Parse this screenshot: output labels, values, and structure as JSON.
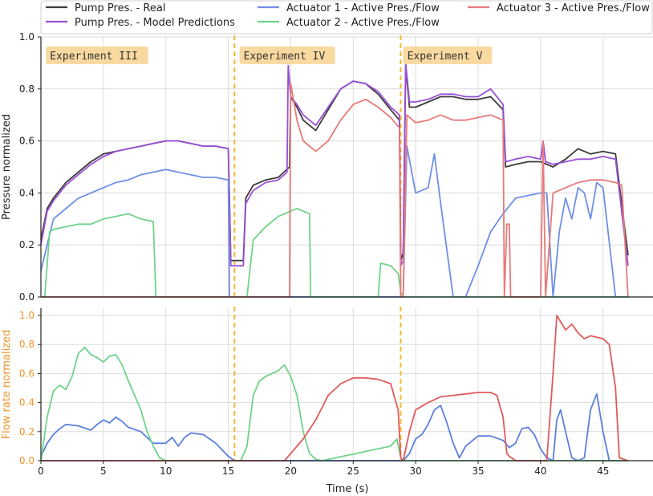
{
  "chart_data": [
    {
      "type": "line",
      "panel": "top",
      "ylabel": "Pressure normalized",
      "xlim": [
        0,
        49
      ],
      "ylim": [
        0,
        1.0
      ],
      "yticks": [
        0.0,
        0.2,
        0.4,
        0.6,
        0.8,
        1.0
      ],
      "grid": true,
      "experiment_boundaries": [
        15.5,
        28.8
      ],
      "annotations": [
        {
          "text": "Experiment III",
          "x": 0.4,
          "y": 0.92
        },
        {
          "text": "Experiment IV",
          "x": 15.9,
          "y": 0.92
        },
        {
          "text": "Experiment V",
          "x": 29.0,
          "y": 0.92
        }
      ],
      "series": [
        {
          "name": "Pump Pres. - Real",
          "color": "#3b3b3b",
          "x": [
            0,
            0.5,
            1,
            2,
            3,
            4,
            5,
            6,
            7,
            8,
            9,
            10,
            11,
            12,
            13,
            14,
            15,
            15.2,
            16.2,
            16.4,
            17,
            18,
            19,
            19.9,
            20,
            20.5,
            21,
            22,
            23,
            24,
            25,
            26,
            27,
            28,
            28.7,
            28.8,
            29.0,
            29.2,
            29.5,
            30,
            31,
            32,
            33,
            34,
            35,
            36,
            37,
            37.2,
            38,
            39,
            40,
            41,
            42,
            43,
            44,
            45,
            46,
            47
          ],
          "y": [
            0.22,
            0.34,
            0.38,
            0.44,
            0.48,
            0.52,
            0.55,
            0.56,
            0.57,
            0.58,
            0.59,
            0.6,
            0.6,
            0.59,
            0.58,
            0.58,
            0.57,
            0.14,
            0.14,
            0.38,
            0.43,
            0.45,
            0.46,
            0.5,
            0.77,
            0.73,
            0.68,
            0.64,
            0.72,
            0.8,
            0.83,
            0.82,
            0.78,
            0.72,
            0.68,
            0.14,
            0.17,
            0.89,
            0.73,
            0.73,
            0.75,
            0.77,
            0.77,
            0.76,
            0.76,
            0.77,
            0.72,
            0.5,
            0.51,
            0.52,
            0.52,
            0.5,
            0.53,
            0.57,
            0.55,
            0.56,
            0.55,
            0.16
          ]
        },
        {
          "name": "Pump Pres. - Model Predictions",
          "color": "#9a4fd6",
          "x": [
            0,
            0.5,
            1,
            2,
            3,
            4,
            5,
            6,
            7,
            8,
            9,
            10,
            11,
            12,
            13,
            14,
            15,
            15.2,
            16.2,
            16.4,
            17,
            18,
            19,
            19.7,
            19.8,
            20,
            20.5,
            21,
            22,
            23,
            24,
            25,
            26,
            27,
            28,
            28.7,
            28.8,
            29.0,
            29.2,
            29.5,
            30,
            31,
            32,
            33,
            34,
            35,
            36,
            37,
            37.2,
            38,
            39,
            40,
            40.2,
            40.4,
            41,
            42,
            43,
            44,
            45,
            46,
            47
          ],
          "y": [
            0.2,
            0.33,
            0.37,
            0.43,
            0.47,
            0.51,
            0.54,
            0.56,
            0.57,
            0.58,
            0.59,
            0.6,
            0.6,
            0.59,
            0.58,
            0.58,
            0.57,
            0.12,
            0.12,
            0.36,
            0.41,
            0.44,
            0.45,
            0.48,
            0.89,
            0.77,
            0.74,
            0.7,
            0.66,
            0.73,
            0.8,
            0.83,
            0.82,
            0.79,
            0.73,
            0.7,
            0.12,
            0.14,
            0.9,
            0.75,
            0.75,
            0.76,
            0.78,
            0.78,
            0.77,
            0.77,
            0.8,
            0.74,
            0.52,
            0.53,
            0.54,
            0.53,
            0.6,
            0.52,
            0.51,
            0.52,
            0.53,
            0.53,
            0.54,
            0.53,
            0.12
          ]
        },
        {
          "name": "Actuator 1 - Active Pres./Flow",
          "color": "#6f8fe6",
          "x": [
            0,
            0.5,
            1,
            2,
            3,
            4,
            5,
            6,
            7,
            8,
            9,
            10,
            11,
            12,
            13,
            14,
            15,
            15.1,
            29.0,
            29.3,
            30,
            31,
            31.5,
            32,
            32.5,
            33,
            33.5,
            34,
            35,
            36,
            37,
            38,
            39,
            40,
            40.5,
            41,
            41.5,
            42,
            42.5,
            43,
            43.5,
            44,
            44.5,
            45,
            46,
            47
          ],
          "y": [
            0.1,
            0.2,
            0.3,
            0.34,
            0.38,
            0.4,
            0.42,
            0.44,
            0.45,
            0.47,
            0.48,
            0.49,
            0.48,
            0.47,
            0.46,
            0.46,
            0.45,
            0.0,
            0.0,
            0.58,
            0.4,
            0.42,
            0.55,
            0.36,
            0.18,
            0.0,
            0.0,
            0.0,
            0.12,
            0.25,
            0.32,
            0.38,
            0.39,
            0.4,
            0.4,
            0.0,
            0.25,
            0.38,
            0.3,
            0.42,
            0.4,
            0.3,
            0.44,
            0.42,
            0.0,
            0.0
          ]
        },
        {
          "name": "Actuator 2 - Active Pres./Flow",
          "color": "#6fd38a",
          "x": [
            0,
            0.3,
            0.7,
            1,
            2,
            3,
            4,
            5,
            6,
            7,
            8,
            9,
            9.2,
            15.2,
            16.5,
            17,
            18,
            19,
            20,
            20.5,
            21,
            21.5,
            21.6,
            27.0,
            27.2,
            28.0,
            28.6,
            28.8,
            29.0,
            47
          ],
          "y": [
            0.0,
            0.0,
            0.25,
            0.26,
            0.27,
            0.28,
            0.28,
            0.3,
            0.31,
            0.32,
            0.3,
            0.29,
            0.0,
            0.0,
            0.0,
            0.22,
            0.27,
            0.31,
            0.33,
            0.34,
            0.33,
            0.32,
            0.0,
            0.0,
            0.13,
            0.12,
            0.09,
            0.02,
            0.0,
            0.0
          ]
        },
        {
          "name": "Actuator 3 - Active Pres./Flow",
          "color": "#e87a7a",
          "x": [
            0,
            19.9,
            20.0,
            20.5,
            21,
            22,
            23,
            24,
            25,
            26,
            27,
            28,
            28.7,
            28.8,
            29.0,
            29.3,
            30,
            31,
            32,
            33,
            34,
            35,
            36,
            37,
            37.1,
            37.3,
            37.5,
            37.6,
            40.0,
            40.2,
            40.4,
            41,
            42,
            43,
            44,
            45,
            46,
            46.5,
            47
          ],
          "y": [
            0.0,
            0.0,
            0.82,
            0.68,
            0.6,
            0.56,
            0.6,
            0.68,
            0.74,
            0.76,
            0.73,
            0.69,
            0.65,
            0.0,
            0.0,
            0.7,
            0.67,
            0.68,
            0.7,
            0.68,
            0.68,
            0.69,
            0.7,
            0.68,
            0.0,
            0.28,
            0.28,
            0.0,
            0.0,
            0.6,
            0.0,
            0.4,
            0.42,
            0.44,
            0.45,
            0.45,
            0.44,
            0.43,
            0.0
          ]
        }
      ]
    },
    {
      "type": "line",
      "panel": "bottom",
      "xlabel": "Time (s)",
      "ylabel": "Flow rate normalized",
      "xlim": [
        0,
        49
      ],
      "ylim": [
        0,
        1.05
      ],
      "xticks": [
        0,
        5,
        10,
        15,
        20,
        25,
        30,
        35,
        40,
        45
      ],
      "yticks": [
        0.0,
        0.2,
        0.4,
        0.6,
        0.8,
        1.0
      ],
      "grid": true,
      "experiment_boundaries": [
        15.5,
        28.8
      ],
      "series": [
        {
          "name": "Actuator 1 - Active Pres./Flow",
          "color": "#5b7fe0",
          "x": [
            0,
            0.5,
            1,
            1.5,
            2,
            3,
            4,
            4.5,
            5,
            5.5,
            6,
            6.5,
            7,
            8,
            9,
            10,
            10.5,
            11,
            11.5,
            12,
            13,
            14,
            15,
            15.5,
            29,
            29.5,
            30,
            30.5,
            31,
            31.5,
            32,
            32.5,
            33,
            33.5,
            34,
            35,
            36,
            37,
            37.5,
            38,
            38.5,
            39,
            39.5,
            40,
            40.5,
            41,
            41.3,
            41.6,
            42,
            42.5,
            43,
            43.5,
            44,
            44.5,
            45,
            45.5,
            46,
            47
          ],
          "y": [
            0.03,
            0.12,
            0.18,
            0.22,
            0.25,
            0.24,
            0.21,
            0.25,
            0.28,
            0.26,
            0.3,
            0.27,
            0.23,
            0.2,
            0.12,
            0.12,
            0.16,
            0.1,
            0.16,
            0.19,
            0.18,
            0.12,
            0.03,
            0.0,
            0.0,
            0.05,
            0.15,
            0.18,
            0.25,
            0.35,
            0.38,
            0.26,
            0.12,
            0.02,
            0.1,
            0.17,
            0.17,
            0.14,
            0.09,
            0.12,
            0.22,
            0.23,
            0.18,
            0.08,
            0.02,
            0.0,
            0.28,
            0.35,
            0.2,
            0.02,
            0.0,
            0.02,
            0.35,
            0.46,
            0.2,
            0.0,
            0.0,
            0.0
          ]
        },
        {
          "name": "Actuator 2 - Active Pres./Flow",
          "color": "#6fd38a",
          "x": [
            0,
            0.5,
            1,
            1.5,
            2,
            2.5,
            3,
            3.5,
            4,
            4.5,
            5,
            5.5,
            6,
            6.5,
            7,
            7.5,
            8,
            8.5,
            9,
            9.5,
            10,
            16.0,
            16.5,
            17,
            17.5,
            18,
            18.5,
            19,
            19.5,
            20,
            20.5,
            21,
            21.5,
            22,
            22.5,
            28.0,
            28.5,
            28.8,
            29,
            47
          ],
          "y": [
            0.0,
            0.3,
            0.48,
            0.52,
            0.49,
            0.58,
            0.74,
            0.78,
            0.73,
            0.71,
            0.68,
            0.72,
            0.73,
            0.66,
            0.55,
            0.45,
            0.35,
            0.2,
            0.1,
            0.02,
            0.0,
            0.0,
            0.1,
            0.45,
            0.55,
            0.58,
            0.6,
            0.62,
            0.66,
            0.58,
            0.45,
            0.2,
            0.05,
            0.01,
            0.0,
            0.1,
            0.15,
            0.02,
            0.0,
            0.0
          ]
        },
        {
          "name": "Actuator 3 - Active Pres./Flow",
          "color": "#e05b5b",
          "x": [
            0,
            19.5,
            20,
            21,
            22,
            23,
            24,
            25,
            26,
            27,
            28,
            28.6,
            28.8,
            29,
            29.5,
            30,
            31,
            32,
            33,
            34,
            35,
            36,
            36.5,
            37,
            37.3,
            37.5,
            38,
            40.5,
            41,
            41.3,
            42,
            42.5,
            43,
            43.5,
            44,
            45,
            45.5,
            46,
            46.3,
            47
          ],
          "y": [
            0.0,
            0.0,
            0.05,
            0.15,
            0.28,
            0.45,
            0.53,
            0.57,
            0.57,
            0.56,
            0.53,
            0.35,
            0.02,
            0.0,
            0.2,
            0.35,
            0.4,
            0.44,
            0.45,
            0.46,
            0.47,
            0.47,
            0.45,
            0.3,
            0.05,
            0.03,
            0.0,
            0.0,
            0.6,
            1.0,
            0.9,
            0.94,
            0.88,
            0.84,
            0.86,
            0.84,
            0.8,
            0.5,
            0.02,
            0.0
          ]
        }
      ]
    }
  ],
  "legend": {
    "placement": "top",
    "entries": [
      {
        "label": "Pump Pres. - Real",
        "color": "#3b3b3b"
      },
      {
        "label": "Pump Pres. - Model Predictions",
        "color": "#9a4fd6"
      },
      {
        "label": "Actuator 1 - Active Pres./Flow",
        "color": "#6f8fe6"
      },
      {
        "label": "Actuator 2 - Active Pres./Flow",
        "color": "#6fd38a"
      },
      {
        "label": "Actuator 3 - Active Pres./Flow",
        "color": "#e87a7a"
      }
    ]
  },
  "colors": {
    "grid": "#dcdcdc",
    "axis": "#222222",
    "boundary": "#f5b731",
    "annotation_bg": "#fad9a0",
    "flow_ylabel": "#f0932b"
  }
}
